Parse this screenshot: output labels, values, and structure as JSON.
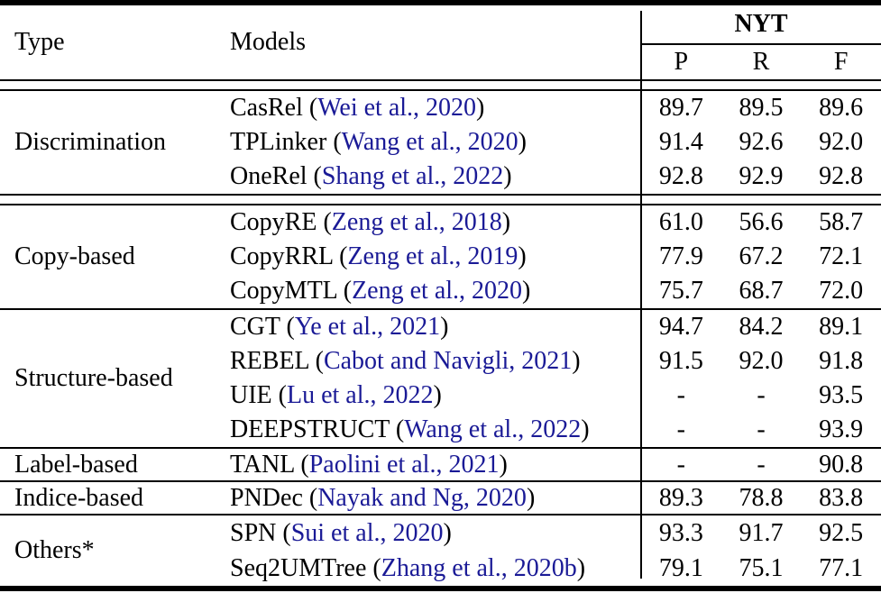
{
  "colors": {
    "citation_link": "#1a1a96",
    "rule": "#000000",
    "background": "#ffffff"
  },
  "header": {
    "type_label": "Type",
    "models_label": "Models",
    "dataset_label": "NYT",
    "metric_labels": [
      "P",
      "R",
      "F"
    ]
  },
  "groups": [
    {
      "type_label": "Discrimination",
      "separator_after": "double",
      "rows": [
        {
          "model": "CasRel",
          "citation": "Wei et al., 2020",
          "p": "89.7",
          "r": "89.5",
          "f": "89.6"
        },
        {
          "model": "TPLinker",
          "citation": "Wang et al., 2020",
          "p": "91.4",
          "r": "92.6",
          "f": "92.0"
        },
        {
          "model": "OneRel",
          "citation": "Shang et al., 2022",
          "p": "92.8",
          "r": "92.9",
          "f": "92.8"
        }
      ]
    },
    {
      "type_label": "Copy-based",
      "separator_after": "single",
      "rows": [
        {
          "model": "CopyRE",
          "citation": "Zeng et al., 2018",
          "p": "61.0",
          "r": "56.6",
          "f": "58.7"
        },
        {
          "model": "CopyRRL",
          "citation": "Zeng et al., 2019",
          "p": "77.9",
          "r": "67.2",
          "f": "72.1"
        },
        {
          "model": "CopyMTL",
          "citation": "Zeng et al., 2020",
          "p": "75.7",
          "r": "68.7",
          "f": "72.0"
        }
      ]
    },
    {
      "type_label": "Structure-based",
      "separator_after": "single",
      "rows": [
        {
          "model": "CGT",
          "citation": "Ye et al., 2021",
          "p": "94.7",
          "r": "84.2",
          "f": "89.1"
        },
        {
          "model": "REBEL",
          "citation": "Cabot and Navigli, 2021",
          "p": "91.5",
          "r": "92.0",
          "f": "91.8"
        },
        {
          "model": "UIE",
          "citation": "Lu et al., 2022",
          "p": "-",
          "r": "-",
          "f": "93.5"
        },
        {
          "model": "DEEPSTRUCT",
          "citation": "Wang et al., 2022",
          "p": "-",
          "r": "-",
          "f": "93.9"
        }
      ]
    },
    {
      "type_label": "Label-based",
      "separator_after": "single",
      "rows": [
        {
          "model": "TANL",
          "citation": "Paolini et al., 2021",
          "p": "-",
          "r": "-",
          "f": "90.8"
        }
      ]
    },
    {
      "type_label": "Indice-based",
      "separator_after": "single",
      "rows": [
        {
          "model": "PNDec",
          "citation": "Nayak and Ng, 2020",
          "p": "89.3",
          "r": "78.8",
          "f": "83.8"
        }
      ]
    },
    {
      "type_label": "Others*",
      "separator_after": "none",
      "rows": [
        {
          "model": "SPN",
          "citation": "Sui et al., 2020",
          "p": "93.3",
          "r": "91.7",
          "f": "92.5"
        },
        {
          "model": "Seq2UMTree",
          "citation": "Zhang et al., 2020b",
          "p": "79.1",
          "r": "75.1",
          "f": "77.1"
        }
      ]
    }
  ]
}
